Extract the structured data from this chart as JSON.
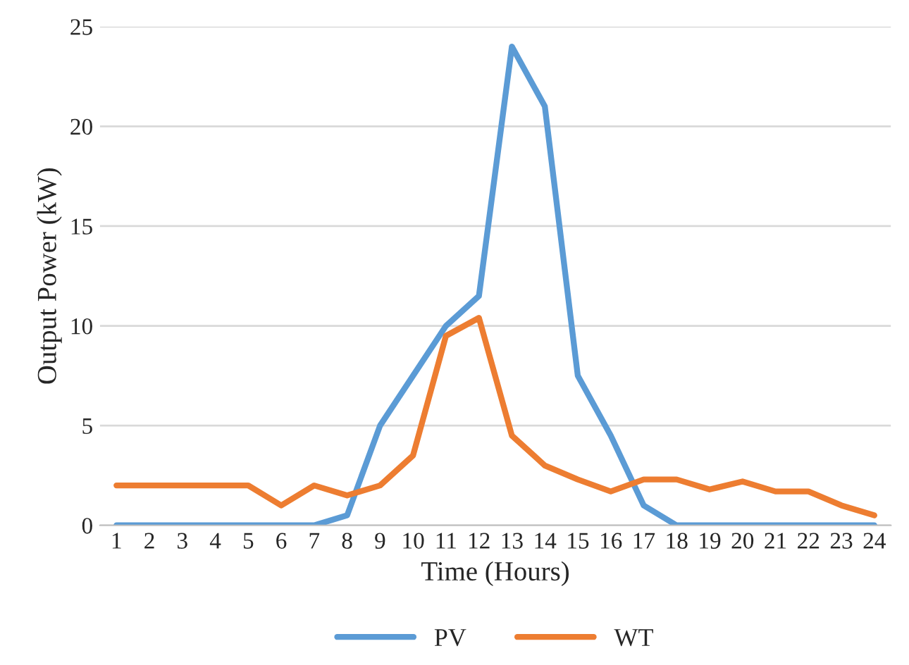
{
  "chart_data": {
    "type": "line",
    "xlabel": "Time (Hours)",
    "ylabel": "Output Power (kW)",
    "categories": [
      "1",
      "2",
      "3",
      "4",
      "5",
      "6",
      "7",
      "8",
      "9",
      "10",
      "11",
      "12",
      "13",
      "14",
      "15",
      "16",
      "17",
      "18",
      "19",
      "20",
      "21",
      "22",
      "23",
      "24"
    ],
    "series": [
      {
        "name": "PV",
        "color": "#5b9bd5",
        "values": [
          0,
          0,
          0,
          0,
          0,
          0,
          0,
          0.5,
          5,
          7.5,
          10,
          11.5,
          24,
          21,
          7.5,
          4.5,
          1,
          0,
          0,
          0,
          0,
          0,
          0,
          0
        ]
      },
      {
        "name": "WT",
        "color": "#ed7d31",
        "values": [
          2,
          2,
          2,
          2,
          2,
          1,
          2,
          1.5,
          2,
          3.5,
          9.5,
          10.4,
          4.5,
          3,
          2.3,
          1.7,
          2.3,
          2.3,
          1.8,
          2.2,
          1.7,
          1.7,
          1,
          0.5
        ]
      }
    ],
    "ylim": [
      0,
      25
    ],
    "yticks": [
      0,
      5,
      10,
      15,
      20,
      25
    ],
    "grid": "y",
    "legend": "bottom",
    "marker": "none",
    "line_style": "solid"
  }
}
